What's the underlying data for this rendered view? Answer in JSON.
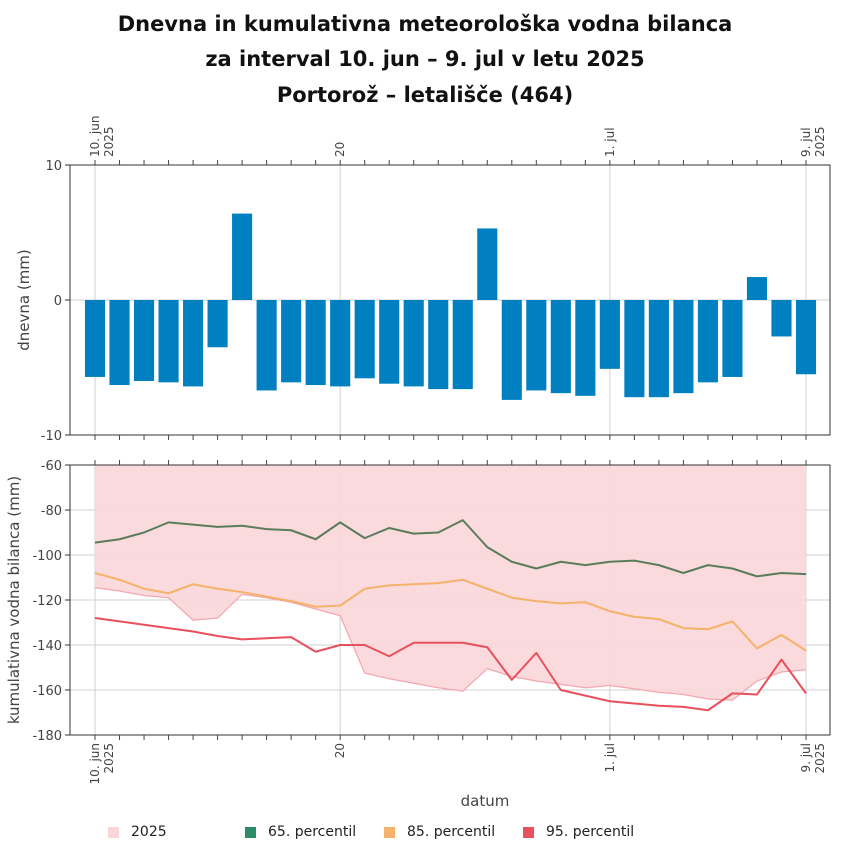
{
  "title": {
    "line1": "Dnevna in kumulativna meteorološka vodna bilanca",
    "line2": "za interval 10. jun – 9. jul v letu 2025",
    "line3": "Portorož – letališče (464)"
  },
  "chart_data": [
    {
      "type": "bar",
      "ylabel": "dnevna (mm)",
      "ylim": [
        -10,
        10
      ],
      "yticks": [
        -10,
        0,
        10
      ],
      "grid": true,
      "color": "#0080c0",
      "categories": [
        "10. jun",
        "11. jun",
        "12. jun",
        "13. jun",
        "14. jun",
        "15. jun",
        "16. jun",
        "17. jun",
        "18. jun",
        "19. jun",
        "20. jun",
        "21. jun",
        "22. jun",
        "23. jun",
        "24. jun",
        "25. jun",
        "26. jun",
        "27. jun",
        "28. jun",
        "29. jun",
        "30. jun",
        "1. jul",
        "2. jul",
        "3. jul",
        "4. jul",
        "5. jul",
        "6. jul",
        "7. jul",
        "8. jul",
        "9. jul"
      ],
      "values": [
        -5.7,
        -6.3,
        -6.0,
        -6.1,
        -6.4,
        -3.5,
        6.4,
        -6.7,
        -6.1,
        -6.3,
        -6.4,
        -5.8,
        -6.2,
        -6.4,
        -6.6,
        -6.6,
        5.3,
        -7.4,
        -6.7,
        -6.9,
        -7.1,
        -5.1,
        -7.2,
        -7.2,
        -6.9,
        -6.1,
        -5.7,
        1.7,
        -2.7,
        -5.5
      ]
    },
    {
      "type": "line",
      "xlabel": "datum",
      "ylabel": "kumulativna vodna bilanca (mm)",
      "ylim": [
        -180,
        -60
      ],
      "yticks": [
        -180,
        -160,
        -140,
        -120,
        -100,
        -80,
        -60
      ],
      "grid": true,
      "x": [
        "10. jun",
        "11. jun",
        "12. jun",
        "13. jun",
        "14. jun",
        "15. jun",
        "16. jun",
        "17. jun",
        "18. jun",
        "19. jun",
        "20. jun",
        "21. jun",
        "22. jun",
        "23. jun",
        "24. jun",
        "25. jun",
        "26. jun",
        "27. jun",
        "28. jun",
        "29. jun",
        "30. jun",
        "1. jul",
        "2. jul",
        "3. jul",
        "4. jul",
        "5. jul",
        "6. jul",
        "7. jul",
        "8. jul",
        "9. jul"
      ],
      "xticks": [
        {
          "label": "10. jun",
          "sub": "2025",
          "index": 0
        },
        {
          "label": "20",
          "sub": "",
          "index": 10
        },
        {
          "label": "1. jul",
          "sub": "",
          "index": 21
        },
        {
          "label": "9. jul",
          "sub": "2025",
          "index": 29
        }
      ],
      "series": [
        {
          "name": "2025",
          "kind": "area",
          "color": "#f4a6ae",
          "fill": "#fbd6d9",
          "values": [
            -114.5,
            -116,
            -118,
            -119,
            -129,
            -128,
            -117.5,
            -119,
            -121,
            -124,
            -127,
            -152.5,
            -155,
            -157,
            -159,
            -160.5,
            -150.5,
            -154,
            -156,
            -157.5,
            -159,
            -158,
            -159.5,
            -161,
            -162,
            -164,
            -164.5,
            -156,
            -152,
            -151
          ]
        },
        {
          "name": "65. percentil",
          "color": "#5a7c5a",
          "values": [
            -94.5,
            -93,
            -90,
            -85.5,
            -86.5,
            -87.5,
            -87,
            -88.5,
            -89,
            -93,
            -85.5,
            -92.5,
            -88,
            -90.5,
            -90,
            -84.5,
            -96.5,
            -103,
            -106,
            -103,
            -104.5,
            -103,
            -102.5,
            -104.5,
            -108,
            -104.5,
            -106,
            -109.5,
            -108,
            -108.5
          ]
        },
        {
          "name": "85. percentil",
          "color": "#f5b26b",
          "values": [
            -108,
            -111,
            -115,
            -117,
            -113,
            -115,
            -116.5,
            -118.5,
            -120.5,
            -123,
            -122.5,
            -115,
            -113.5,
            -113,
            -112.5,
            -111,
            -115,
            -119,
            -120.5,
            -121.5,
            -121,
            -125,
            -127.5,
            -128.5,
            -132.5,
            -133,
            -129.5,
            -141.5,
            -135.5,
            -142.5
          ]
        },
        {
          "name": "95. percentil",
          "color": "#e8505b",
          "values": [
            -128,
            -129.5,
            -131,
            -132.5,
            -134,
            -136,
            -137.5,
            -137,
            -136.5,
            -143,
            -140,
            -140,
            -145,
            -139,
            -139,
            -139,
            -141,
            -155.5,
            -143.5,
            -160,
            -162.5,
            -165,
            -166,
            -167,
            -167.5,
            -169,
            -161.5,
            -162,
            -146.5,
            -161.5
          ]
        }
      ]
    }
  ],
  "legend": [
    {
      "name": "2025",
      "color": "#fbd6d9"
    },
    {
      "name": "65. percentil",
      "color": "#2e8b67"
    },
    {
      "name": "85. percentil",
      "color": "#f5b26b"
    },
    {
      "name": "95. percentil",
      "color": "#e8505b"
    }
  ]
}
